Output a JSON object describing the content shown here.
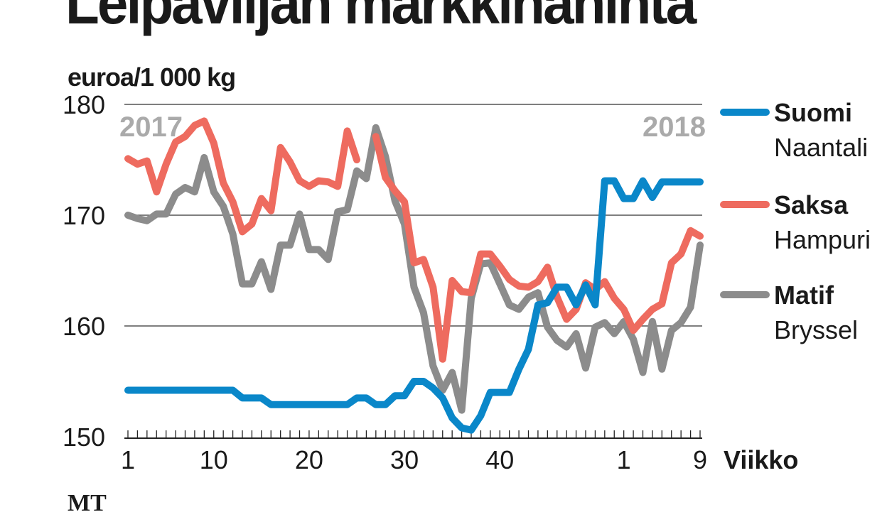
{
  "chart_data": {
    "type": "line",
    "title": "Leipäviljan markkinahinta",
    "ylabel": "euroa/1 000 kg",
    "xlabel": "Viikko",
    "ylim": [
      150,
      180
    ],
    "yticks": [
      150,
      160,
      170,
      180
    ],
    "grid": true,
    "legend_placement": "right",
    "year_labels": [
      "2017",
      "2018"
    ],
    "x": [
      "1",
      "2",
      "3",
      "4",
      "5",
      "6",
      "7",
      "8",
      "9",
      "10",
      "11",
      "12",
      "13",
      "14",
      "15",
      "16",
      "17",
      "18",
      "19",
      "20",
      "21",
      "22",
      "23",
      "24",
      "25",
      "26",
      "27",
      "28",
      "29",
      "30",
      "31",
      "32",
      "33",
      "34",
      "35",
      "36",
      "37",
      "38",
      "39",
      "40",
      "41",
      "42",
      "43",
      "44",
      "45",
      "46",
      "47",
      "48",
      "49",
      "50",
      "51",
      "52",
      "1",
      "2",
      "3",
      "4",
      "5",
      "6",
      "7",
      "8",
      "9"
    ],
    "xtick_labels": [
      {
        "index": 0,
        "label": "1"
      },
      {
        "index": 9,
        "label": "10"
      },
      {
        "index": 19,
        "label": "20"
      },
      {
        "index": 29,
        "label": "30"
      },
      {
        "index": 39,
        "label": "40"
      },
      {
        "index": 52,
        "label": "1"
      },
      {
        "index": 60,
        "label": "9"
      }
    ],
    "series": [
      {
        "name": "Suomi",
        "sub": "Naantali",
        "color": "#0a87c9",
        "values": [
          154.2,
          154.2,
          154.2,
          154.2,
          154.2,
          154.2,
          154.2,
          154.2,
          154.2,
          154.2,
          154.2,
          154.2,
          153.5,
          153.5,
          153.5,
          152.9,
          152.9,
          152.9,
          152.9,
          152.9,
          152.9,
          152.9,
          152.9,
          152.9,
          153.5,
          153.5,
          152.9,
          152.9,
          153.7,
          153.7,
          155,
          155,
          154.4,
          153.5,
          151.7,
          150.8,
          150.6,
          151.9,
          154,
          154,
          154,
          156.1,
          157.9,
          161.9,
          162.1,
          163.5,
          163.5,
          161.9,
          163.7,
          161.9,
          173.1,
          173.1,
          171.5,
          171.5,
          173.1,
          171.6,
          173,
          173,
          173,
          173,
          173
        ]
      },
      {
        "name": "Saksa",
        "sub": "Hampuri",
        "color": "#ee6b5f",
        "values": [
          175.1,
          174.6,
          174.9,
          172.1,
          174.6,
          176.6,
          177.1,
          178.1,
          178.5,
          176.5,
          172.9,
          171.2,
          168.5,
          169.2,
          171.5,
          170.4,
          176.1,
          174.8,
          173.1,
          172.6,
          173.1,
          173,
          172.6,
          177.6,
          175,
          null,
          177.1,
          173.4,
          172.2,
          171.2,
          165.7,
          166,
          163.5,
          157,
          164.1,
          163.1,
          163,
          166.5,
          166.5,
          165.4,
          164.2,
          163.6,
          163.5,
          164,
          165.3,
          162.6,
          160.6,
          161.5,
          163.9,
          163.3,
          164,
          162.5,
          161.5,
          159.6,
          160.6,
          161.5,
          162,
          165.7,
          166.5,
          168.6,
          168.1
        ]
      },
      {
        "name": "Matif",
        "sub": "Bryssel",
        "color": "#8c8c8c",
        "values": [
          170,
          169.7,
          169.5,
          170.1,
          170.1,
          171.9,
          172.5,
          172.1,
          175.2,
          172.1,
          170.8,
          168.3,
          163.8,
          163.8,
          165.8,
          163.3,
          167.3,
          167.3,
          170.1,
          166.9,
          166.9,
          166,
          170.3,
          170.5,
          174,
          173.3,
          177.9,
          175.3,
          171.3,
          169.2,
          163.5,
          161.2,
          156.4,
          154.2,
          155.8,
          152.4,
          162.5,
          165.6,
          165.7,
          163.8,
          161.9,
          161.5,
          162.6,
          163,
          159.9,
          158.7,
          158.1,
          159.3,
          156.2,
          159.9,
          160.3,
          159.3,
          160.4,
          158.8,
          155.8,
          160.4,
          156.1,
          159.6,
          160.3,
          161.7,
          167.3
        ]
      }
    ],
    "source": "MT"
  }
}
